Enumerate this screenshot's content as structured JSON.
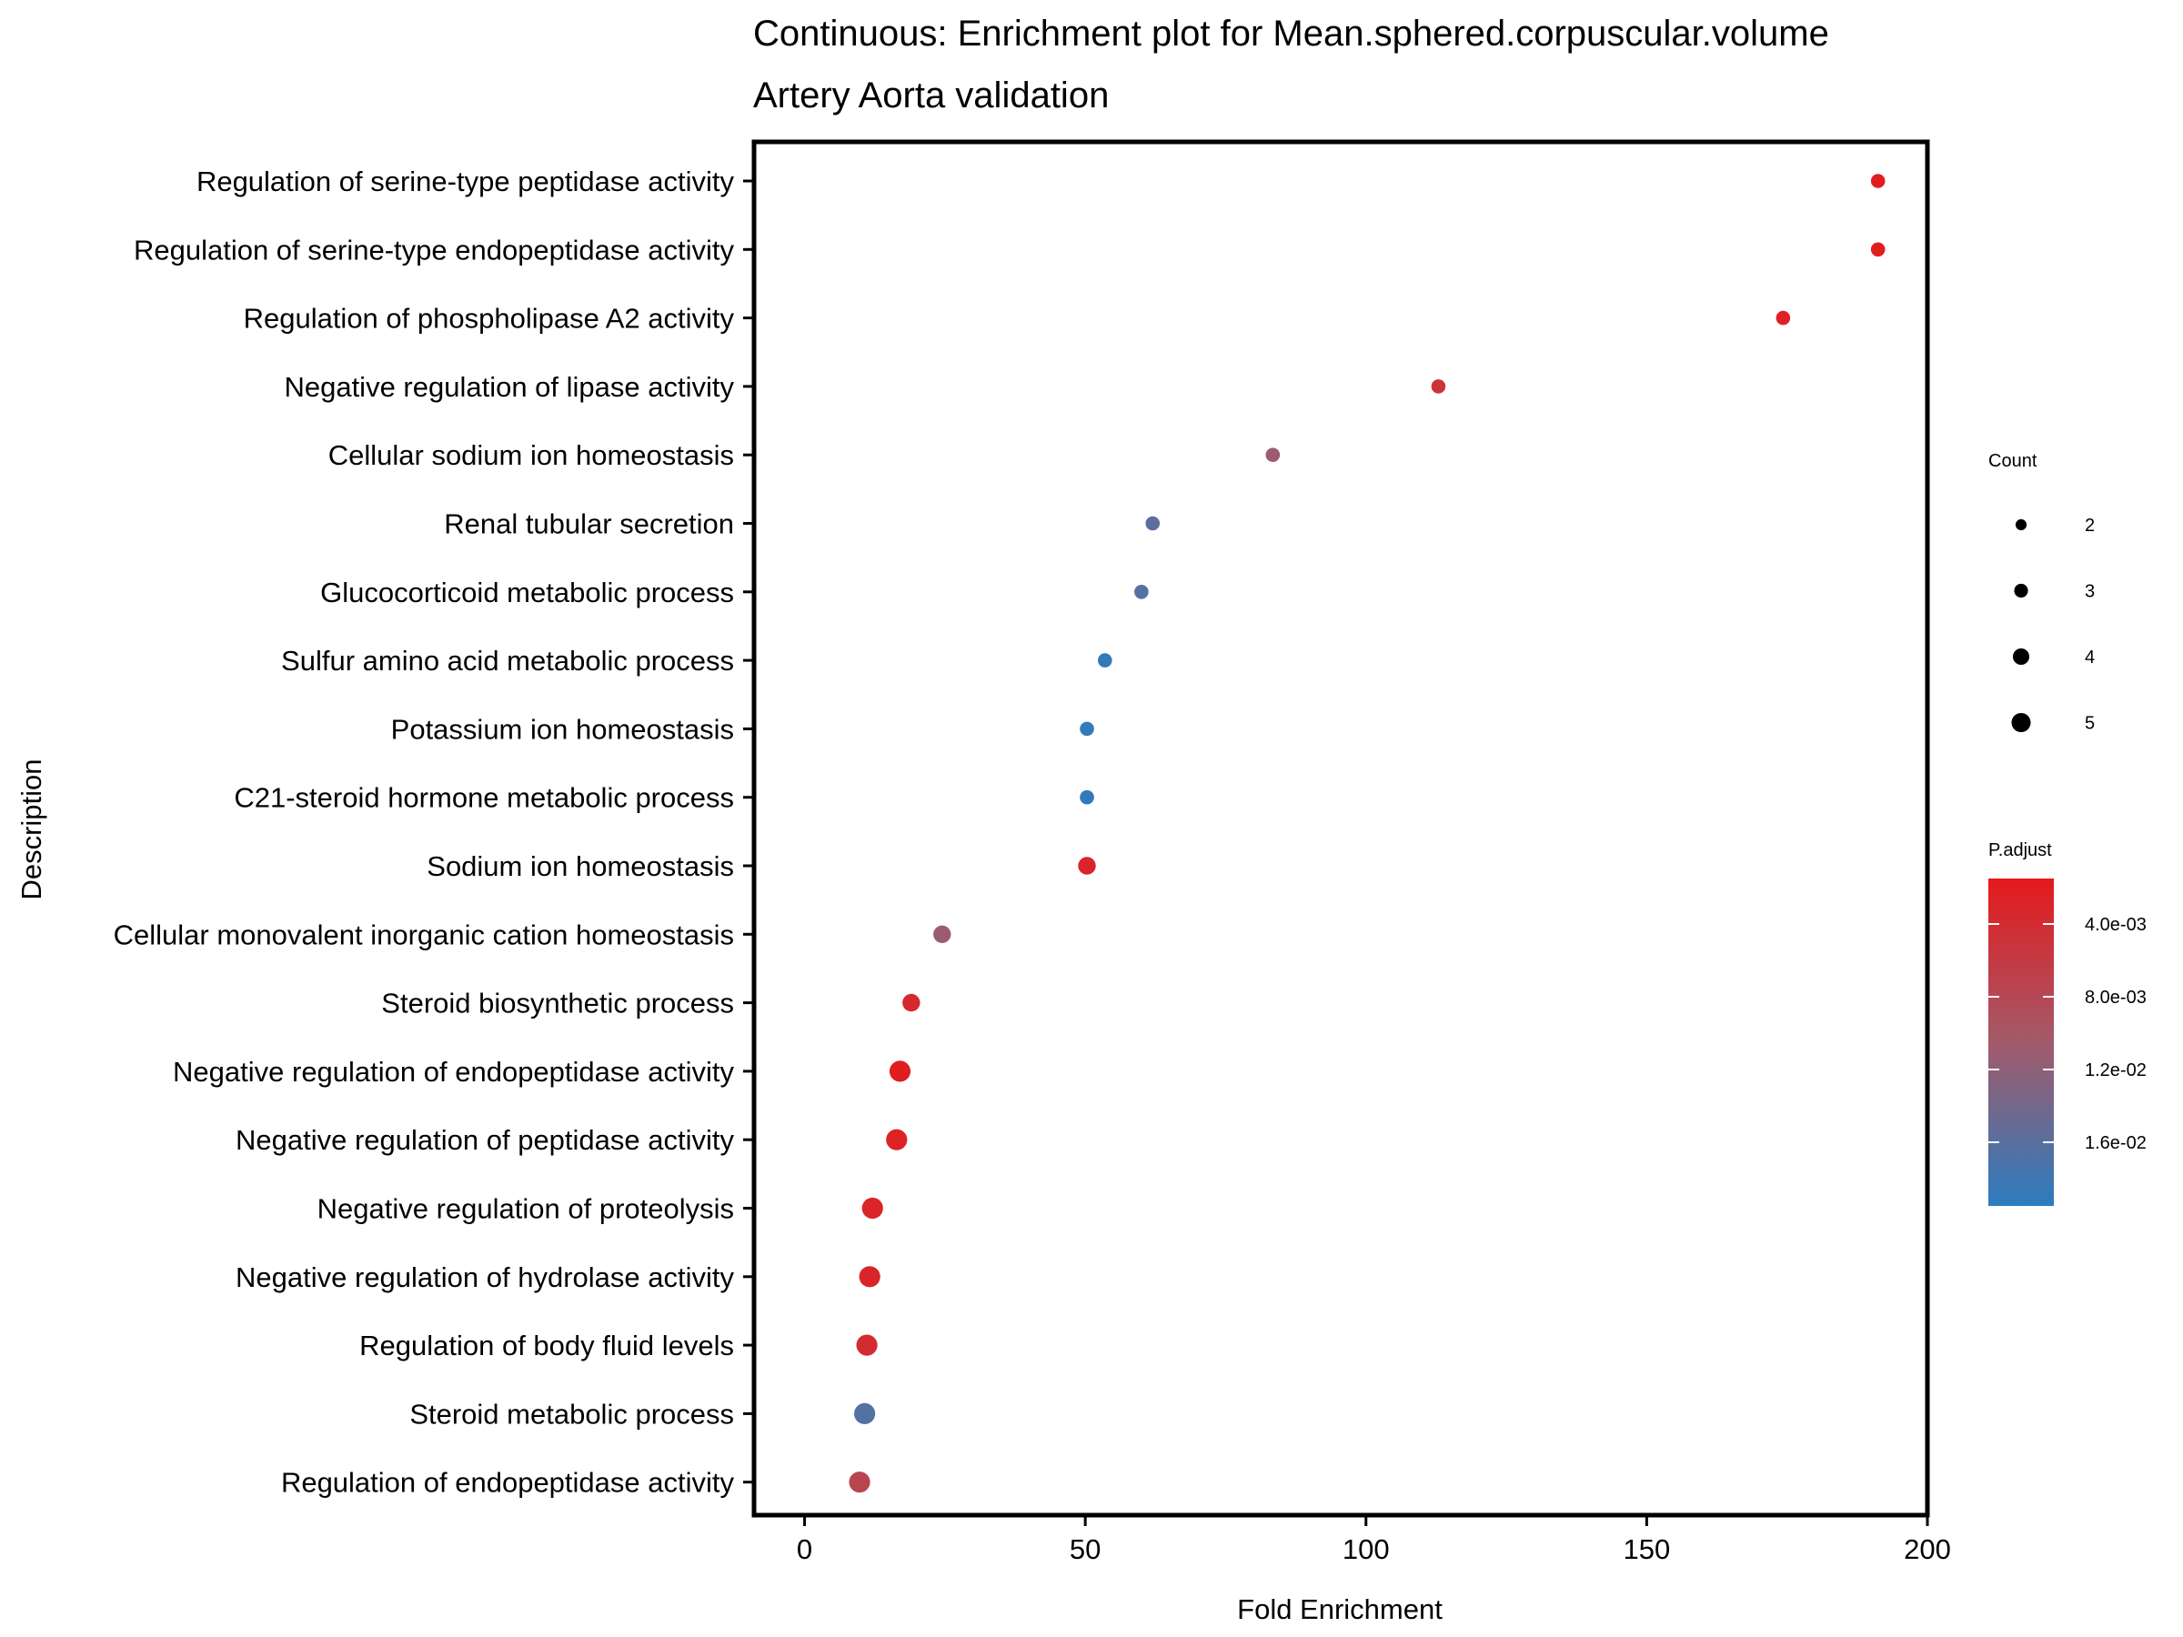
{
  "chart_data": {
    "type": "scatter",
    "title": "Continuous: Enrichment plot for Mean.sphered.corpuscular.volume",
    "subtitle": "Artery Aorta validation",
    "xlabel": "Fold Enrichment",
    "ylabel": "Description",
    "xlim": [
      -9,
      200
    ],
    "xticks": [
      0,
      50,
      100,
      150,
      200
    ],
    "categories": [
      "Regulation of serine-type peptidase activity",
      "Regulation of serine-type endopeptidase activity",
      "Regulation of phospholipase A2 activity",
      "Negative regulation of lipase activity",
      "Cellular sodium ion homeostasis",
      "Renal tubular secretion",
      "Glucocorticoid metabolic process",
      "Sulfur amino acid metabolic process",
      "Potassium ion homeostasis",
      "C21-steroid hormone metabolic process",
      "Sodium ion homeostasis",
      "Cellular monovalent inorganic cation homeostasis",
      "Steroid biosynthetic process",
      "Negative regulation of endopeptidase activity",
      "Negative regulation of peptidase activity",
      "Negative regulation of proteolysis",
      "Negative regulation of hydrolase activity",
      "Regulation of body fluid levels",
      "Steroid metabolic process",
      "Regulation of endopeptidase activity"
    ],
    "fold_enrichment": [
      191.2,
      191.2,
      174.3,
      112.9,
      83.4,
      62.0,
      60.0,
      53.5,
      50.3,
      50.3,
      50.3,
      24.5,
      19.0,
      17.0,
      16.4,
      12.1,
      11.6,
      11.1,
      10.7,
      9.8
    ],
    "count": [
      2,
      2,
      2,
      2,
      2,
      2,
      2,
      2,
      2,
      2,
      3,
      3,
      3,
      4,
      4,
      4,
      4,
      4,
      4,
      4
    ],
    "p_adjust": [
      0.002,
      0.002,
      0.0025,
      0.005,
      0.011,
      0.016,
      0.0165,
      0.019,
      0.019,
      0.019,
      0.003,
      0.011,
      0.0035,
      0.002,
      0.0025,
      0.003,
      0.003,
      0.004,
      0.0165,
      0.0075
    ],
    "legend_size": {
      "title": "Count",
      "labels": [
        "2",
        "3",
        "4",
        "5"
      ],
      "values": [
        2,
        3,
        4,
        5
      ]
    },
    "legend_color": {
      "title": "P.adjust",
      "labels": [
        "4.0e-03",
        "8.0e-03",
        "1.2e-02",
        "1.6e-02"
      ],
      "values": [
        0.004,
        0.008,
        0.012,
        0.016
      ],
      "range": [
        0.0015,
        0.0195
      ],
      "low_color": "#e41a1c",
      "high_color": "#2b7cbf",
      "mid_color": "#a35a6a"
    },
    "grid": false,
    "legend_position": "right"
  }
}
